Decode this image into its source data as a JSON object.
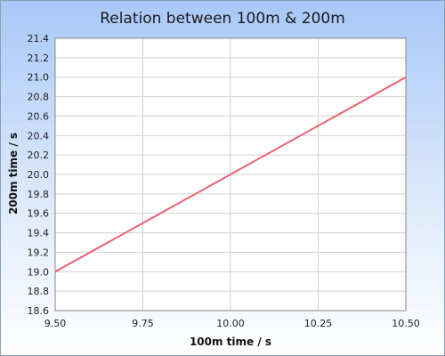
{
  "chart_data": {
    "type": "line",
    "title": "Relation between 100m & 200m",
    "xlabel": "100m time / s",
    "ylabel": "200m time / s",
    "xlim": [
      9.5,
      10.5
    ],
    "ylim": [
      18.6,
      21.4
    ],
    "xticks": [
      "9.50",
      "9.75",
      "10.00",
      "10.25",
      "10.50"
    ],
    "yticks": [
      "18.6",
      "18.8",
      "19.0",
      "19.2",
      "19.4",
      "19.6",
      "19.8",
      "20.0",
      "20.2",
      "20.4",
      "20.6",
      "20.8",
      "21.0",
      "21.2",
      "21.4"
    ],
    "grid": true,
    "series": [
      {
        "color": "#f06070",
        "x": [
          9.5,
          10.5
        ],
        "y": [
          19.0,
          21.0
        ]
      }
    ],
    "colors": {
      "background_top": "#a8c8f8",
      "background_bottom": "#ffffff",
      "plot_background": "#ffffff",
      "grid": "#cfcfcf"
    }
  }
}
